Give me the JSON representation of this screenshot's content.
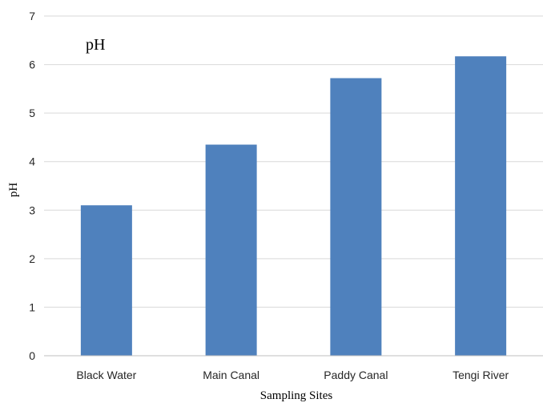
{
  "chart_data": {
    "type": "bar",
    "title": "pH",
    "xlabel": "Sampling Sites",
    "ylabel": "pH",
    "categories": [
      "Black Water",
      "Main Canal",
      "Paddy Canal",
      "Tengi River"
    ],
    "values": [
      3.1,
      4.35,
      5.72,
      6.17
    ],
    "ylim": [
      0,
      7
    ],
    "yticks": [
      "0",
      "1",
      "2",
      "3",
      "4",
      "5",
      "6",
      "7"
    ],
    "grid": true,
    "legend": "none",
    "bar_color": "#4F81BD",
    "grid_color": "#D9D9D9",
    "axis_color": "#BFBFBF"
  }
}
